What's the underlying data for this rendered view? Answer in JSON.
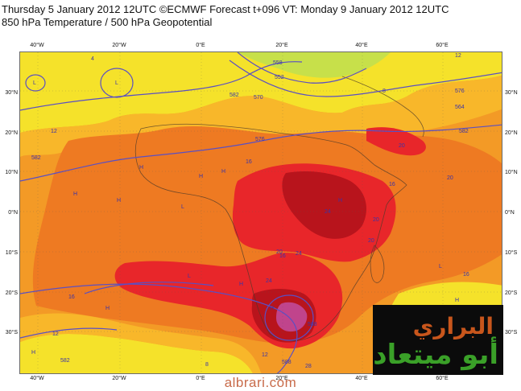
{
  "header": {
    "line1": "Thursday 5 January 2012 12UTC ©ECMWF Forecast t+096 VT: Monday 9 January 2012 12UTC",
    "line2": "850 hPa Temperature / 500 hPa Geopotential"
  },
  "map": {
    "lon_labels_top": [
      "40°W",
      "20°W",
      "0°E",
      "20°E",
      "40°E",
      "60°E"
    ],
    "lon_labels_bottom": [
      "40°W",
      "20°W",
      "0°E",
      "20°E",
      "40°E",
      "60°E"
    ],
    "lat_labels": [
      "30°N",
      "20°N",
      "10°N",
      "0°N",
      "10°S",
      "20°S",
      "30°S"
    ],
    "contour_labels": [
      "552",
      "570",
      "576",
      "582",
      "582",
      "558",
      "564",
      "588",
      "588",
      "582",
      "576",
      "582"
    ],
    "temp_labels": [
      "12",
      "12",
      "16",
      "16",
      "16",
      "20",
      "20",
      "20",
      "24",
      "24",
      "28",
      "20",
      "16",
      "12",
      "8",
      "4",
      "8",
      "12",
      "16",
      "20",
      "24"
    ],
    "pressure_marks": [
      "L",
      "L",
      "H",
      "H",
      "H",
      "H",
      "L",
      "H",
      "H",
      "H",
      "L",
      "H",
      "H",
      "H",
      "L",
      "H"
    ],
    "colors": {
      "yellow": "#f5e22a",
      "light_orange": "#f8b72a",
      "orange": "#f39a26",
      "deep_orange": "#ee7a22",
      "red": "#e8262a",
      "dark_red": "#b8141c",
      "magenta": "#c0448c",
      "contour": "#5a4fc4"
    }
  },
  "logo": {
    "line1": "البراري",
    "line2": "أبو ميتعاد"
  },
  "watermark": "albrari.com"
}
